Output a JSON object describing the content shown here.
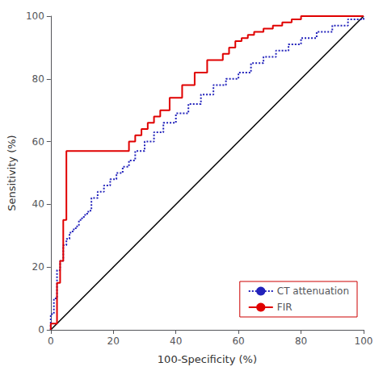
{
  "chart_data": {
    "type": "line",
    "xlabel": "100-Specificity (%)",
    "ylabel": "Sensitivity (%)",
    "xlim": [
      0,
      100
    ],
    "ylim": [
      0,
      100
    ],
    "xticks": [
      0,
      20,
      40,
      60,
      80,
      100
    ],
    "yticks": [
      0,
      20,
      40,
      60,
      80,
      100
    ],
    "grid": false,
    "legend": "lower right",
    "series": [
      {
        "color": "#000000",
        "line_style": "solid",
        "x": [
          0,
          100
        ],
        "values": [
          0,
          100
        ]
      },
      {
        "name": "CT attenuation",
        "color": "#2222bb",
        "line_style": "dotted",
        "x": [
          0,
          0,
          1,
          1,
          2,
          2,
          3,
          3,
          4,
          4,
          5,
          5,
          6,
          6,
          7,
          7,
          8,
          8,
          9,
          9,
          10,
          10,
          11,
          11,
          12,
          12,
          13,
          13,
          15,
          15,
          17,
          17,
          19,
          19,
          21,
          21,
          23,
          23,
          25,
          25,
          27,
          27,
          30,
          30,
          33,
          33,
          36,
          36,
          40,
          40,
          44,
          44,
          48,
          48,
          52,
          52,
          56,
          56,
          60,
          60,
          64,
          64,
          68,
          68,
          72,
          72,
          76,
          76,
          80,
          80,
          85,
          85,
          90,
          90,
          95,
          95,
          100
        ],
        "values": [
          0,
          5,
          5,
          10,
          10,
          19,
          19,
          22,
          22,
          27,
          27,
          29,
          29,
          31,
          31,
          32,
          32,
          33,
          33,
          35,
          35,
          36,
          36,
          37,
          37,
          38,
          38,
          42,
          42,
          44,
          44,
          46,
          46,
          48,
          48,
          50,
          50,
          52,
          52,
          54,
          54,
          57,
          57,
          60,
          60,
          63,
          63,
          66,
          66,
          69,
          69,
          72,
          72,
          75,
          75,
          78,
          78,
          80,
          80,
          82,
          82,
          85,
          85,
          87,
          87,
          89,
          89,
          91,
          91,
          93,
          93,
          95,
          95,
          97,
          97,
          99,
          100
        ]
      },
      {
        "name": "FIR",
        "color": "#e00000",
        "line_style": "solid",
        "x": [
          0,
          0,
          2,
          2,
          3,
          3,
          4,
          4,
          5,
          5,
          25,
          25,
          27,
          27,
          29,
          29,
          31,
          31,
          33,
          33,
          35,
          35,
          38,
          38,
          42,
          42,
          46,
          46,
          50,
          50,
          55,
          55,
          57,
          57,
          59,
          59,
          61,
          61,
          63,
          63,
          65,
          65,
          68,
          68,
          71,
          71,
          74,
          74,
          77,
          77,
          80,
          80,
          83,
          83,
          86,
          86,
          89,
          89,
          92,
          92,
          95,
          95,
          98,
          98,
          100
        ],
        "values": [
          0,
          2,
          2,
          15,
          15,
          22,
          22,
          35,
          35,
          57,
          57,
          60,
          60,
          62,
          62,
          64,
          64,
          66,
          66,
          68,
          68,
          70,
          70,
          74,
          74,
          78,
          78,
          82,
          82,
          86,
          86,
          88,
          88,
          90,
          90,
          92,
          92,
          93,
          93,
          94,
          94,
          95,
          95,
          96,
          96,
          97,
          97,
          98,
          98,
          99,
          99,
          100,
          100,
          100,
          100,
          100,
          100,
          100,
          100,
          100,
          100,
          100,
          100,
          100,
          100
        ]
      }
    ]
  }
}
